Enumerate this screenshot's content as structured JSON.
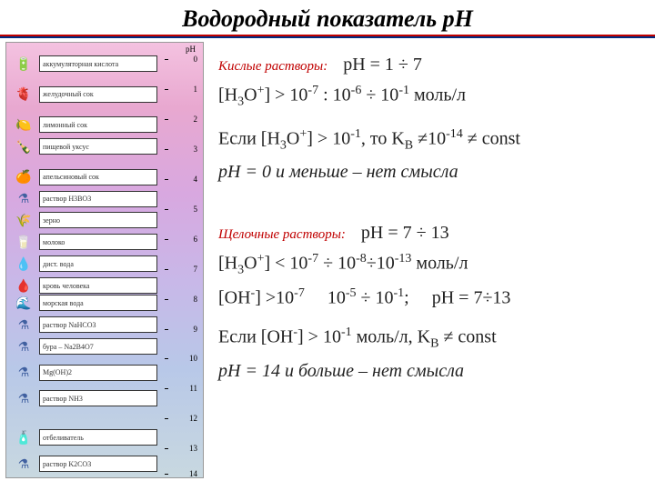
{
  "title": "Водородный показатель рН",
  "stripes": [
    "#c00000",
    "#002b80"
  ],
  "scale": {
    "gradient_top": "#f4c2e0",
    "gradient_bottom": "#c8d8e0",
    "ph_label": "pH",
    "ticks": [
      {
        "v": "0",
        "pos": 2
      },
      {
        "v": "1",
        "pos": 9
      },
      {
        "v": "2",
        "pos": 16
      },
      {
        "v": "3",
        "pos": 23
      },
      {
        "v": "4",
        "pos": 30
      },
      {
        "v": "5",
        "pos": 37
      },
      {
        "v": "6",
        "pos": 44
      },
      {
        "v": "7",
        "pos": 51
      },
      {
        "v": "8",
        "pos": 58
      },
      {
        "v": "9",
        "pos": 65
      },
      {
        "v": "10",
        "pos": 72
      },
      {
        "v": "11",
        "pos": 79
      },
      {
        "v": "12",
        "pos": 86
      },
      {
        "v": "13",
        "pos": 93
      },
      {
        "v": "14",
        "pos": 99
      }
    ],
    "items": [
      {
        "pos": 3,
        "label": "аккумуляторная кислота",
        "icon": "🔋",
        "icolor": "#8b4513"
      },
      {
        "pos": 10,
        "label": "желудочный сок",
        "icon": "🫀",
        "icolor": "#d87070"
      },
      {
        "pos": 17,
        "label": "лимонный сок",
        "icon": "🍋",
        "icolor": "#e8d000"
      },
      {
        "pos": 22,
        "label": "пищевой уксус",
        "icon": "🍾",
        "icolor": "#607050"
      },
      {
        "pos": 29,
        "label": "апельсиновый сок",
        "icon": "🍊",
        "icolor": "#f08000"
      },
      {
        "pos": 34,
        "label": "раствор H3BO3",
        "icon": "⚗",
        "icolor": "#4060a0"
      },
      {
        "pos": 39,
        "label": "зерно",
        "icon": "🌾",
        "icolor": "#c0a050"
      },
      {
        "pos": 44,
        "label": "молоко",
        "icon": "🥛",
        "icolor": "#e0e0e0"
      },
      {
        "pos": 49,
        "label": "дист. вода",
        "icon": "💧",
        "icolor": "#80c0e0"
      },
      {
        "pos": 54,
        "label": "кровь человека",
        "icon": "🩸",
        "icolor": "#c04040"
      },
      {
        "pos": 58,
        "label": "морская вода",
        "icon": "🌊",
        "icolor": "#4080c0"
      },
      {
        "pos": 63,
        "label": "раствор NaHCO3",
        "icon": "⚗",
        "icolor": "#4060a0"
      },
      {
        "pos": 68,
        "label": "бура – Na2B4O7",
        "icon": "⚗",
        "icolor": "#4060a0"
      },
      {
        "pos": 74,
        "label": "Mg(OH)2",
        "icon": "⚗",
        "icolor": "#4060a0"
      },
      {
        "pos": 80,
        "label": "раствор NH3",
        "icon": "⚗",
        "icolor": "#4060a0"
      },
      {
        "pos": 89,
        "label": "отбеливатель",
        "icon": "🧴",
        "icolor": "#d0d000"
      },
      {
        "pos": 95,
        "label": "раствор K2CO3",
        "icon": "⚗",
        "icolor": "#4060a0"
      }
    ]
  },
  "right": {
    "acid": {
      "label": "Кислые растворы:",
      "range": "рН = 1 ÷ 7",
      "conc": "[H₃O⁺] > 10⁻⁷ : 10⁻⁶ ÷ 10⁻¹ моль/л",
      "cond": "Если [H₃O⁺] > 10⁻¹, то K_B ≠10⁻¹⁴ ≠ const",
      "note": "рН = 0 и меньше – нет смысла"
    },
    "base": {
      "label": "Щелочные растворы:",
      "range": "рН = 7 ÷ 13",
      "conc": "[H₃O⁺] < 10⁻⁷ ÷ 10⁻⁸÷10⁻¹³ моль/л",
      "oh": "[OH⁻] >10⁻⁷     10⁻⁵ ÷ 10⁻¹;     рН = 7÷13",
      "cond": "Если [ОН⁻] > 10⁻¹ моль/л, K_B ≠ const",
      "note": "рН = 14 и больше – нет смысла"
    }
  }
}
